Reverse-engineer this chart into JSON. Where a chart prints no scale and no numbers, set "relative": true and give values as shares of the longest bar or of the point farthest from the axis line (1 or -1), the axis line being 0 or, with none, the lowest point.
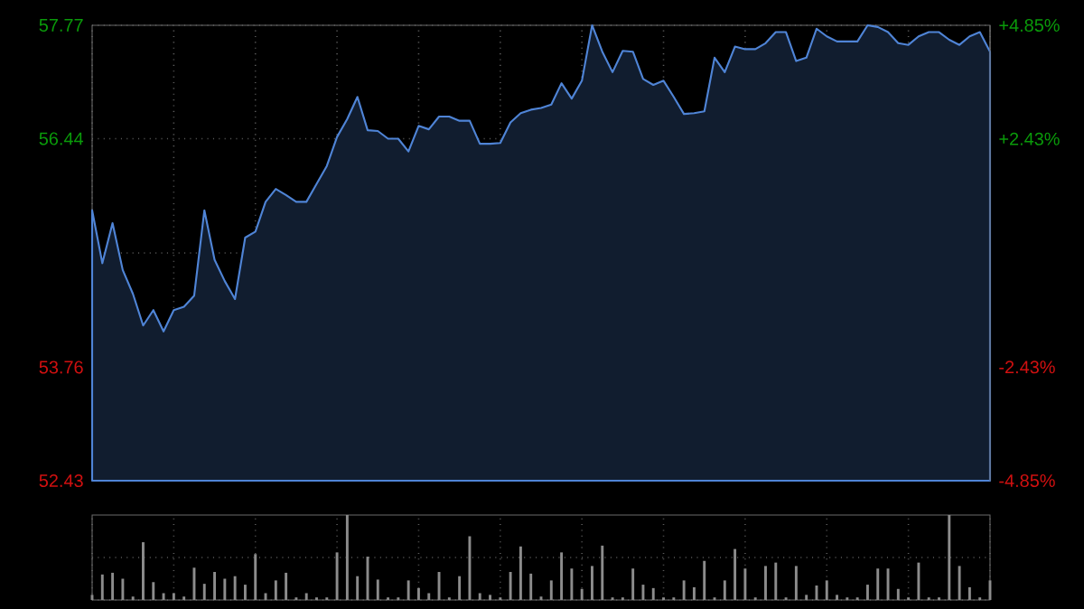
{
  "chart_data": [
    {
      "type": "area",
      "categories": [
        null,
        null,
        null,
        null,
        null,
        null,
        null,
        null,
        null,
        null,
        null,
        null,
        null,
        null,
        null,
        null,
        null,
        null,
        null,
        null,
        null,
        null,
        null,
        null,
        null,
        null,
        null,
        null,
        null,
        null,
        null,
        null,
        null,
        null,
        null,
        null,
        null,
        null,
        null,
        null,
        null,
        null,
        null,
        null,
        null,
        null,
        null,
        null,
        null,
        null,
        null,
        null,
        null,
        null,
        null,
        null,
        null,
        null,
        null,
        null,
        null,
        null,
        null,
        null,
        null,
        null,
        null,
        null,
        null,
        null,
        null,
        null,
        null,
        null,
        null,
        null,
        null,
        null,
        null,
        null,
        null,
        null,
        null,
        null,
        null,
        null,
        null,
        null,
        null
      ],
      "series": [
        {
          "color": "#4f84d6",
          "values": [
            55.6,
            54.98,
            55.45,
            54.9,
            54.62,
            54.25,
            54.43,
            54.18,
            54.43,
            54.47,
            54.6,
            55.6,
            55.02,
            54.77,
            54.56,
            55.28,
            55.35,
            55.7,
            55.85,
            55.78,
            55.7,
            55.7,
            55.91,
            56.12,
            56.46,
            56.67,
            56.93,
            56.54,
            56.53,
            56.44,
            56.44,
            56.29,
            56.59,
            56.55,
            56.7,
            56.7,
            56.65,
            56.65,
            56.38,
            56.38,
            56.39,
            56.63,
            56.74,
            56.78,
            56.8,
            56.84,
            57.09,
            56.91,
            57.12,
            57.77,
            57.46,
            57.22,
            57.47,
            57.46,
            57.14,
            57.07,
            57.12,
            56.93,
            56.73,
            56.74,
            56.76,
            57.39,
            57.22,
            57.52,
            57.49,
            57.49,
            57.56,
            57.69,
            57.69,
            57.35,
            57.39,
            57.73,
            57.64,
            57.58,
            57.58,
            57.58,
            57.77,
            57.75,
            57.69,
            57.56,
            57.54,
            57.64,
            57.69,
            57.69,
            57.6,
            57.54,
            57.64,
            57.69,
            57.46
          ]
        }
      ],
      "ylim": [
        52.43,
        57.77
      ],
      "yticks": [
        52.43,
        53.76,
        {
          "value": 55.1,
          "label": null
        },
        56.44,
        57.77
      ],
      "y2lim": [
        -4.85,
        4.85
      ],
      "y2ticks": [
        {
          "value": -4.85,
          "label": "-4.85%"
        },
        {
          "value": -2.43,
          "label": "-2.43%"
        },
        {
          "value": 2.43,
          "label": "+2.43%"
        },
        {
          "value": 4.85,
          "label": "+4.85%"
        }
      ],
      "grid": true,
      "tick_labels": "y"
    },
    {
      "type": "bar",
      "relative": true,
      "color": "#8c8c8c",
      "grid": true,
      "tick_labels": false,
      "categories": [
        null,
        null,
        null,
        null,
        null,
        null,
        null,
        null,
        null,
        null,
        null,
        null,
        null,
        null,
        null,
        null,
        null,
        null,
        null,
        null,
        null,
        null,
        null,
        null,
        null,
        null,
        null,
        null,
        null,
        null,
        null,
        null,
        null,
        null,
        null,
        null,
        null,
        null,
        null,
        null,
        null,
        null,
        null,
        null,
        null,
        null,
        null,
        null,
        null,
        null,
        null,
        null,
        null,
        null,
        null,
        null,
        null,
        null,
        null,
        null,
        null,
        null,
        null,
        null,
        null,
        null,
        null,
        null,
        null,
        null,
        null,
        null,
        null,
        null,
        null,
        null,
        null,
        null,
        null,
        null,
        null,
        null,
        null,
        null,
        null,
        null,
        null,
        null,
        null
      ],
      "values": [
        0.06,
        0.3,
        0.32,
        0.25,
        0.04,
        0.68,
        0.21,
        0.08,
        0.08,
        0.04,
        0.38,
        0.19,
        0.33,
        0.25,
        0.28,
        0.18,
        0.54,
        0.08,
        0.23,
        0.32,
        0.03,
        0.08,
        0.03,
        0.03,
        0.56,
        1.0,
        0.28,
        0.51,
        0.24,
        0.03,
        0.03,
        0.23,
        0.14,
        0.08,
        0.33,
        0.03,
        0.28,
        0.75,
        0.08,
        0.06,
        0.03,
        0.33,
        0.63,
        0.31,
        0.04,
        0.23,
        0.56,
        0.37,
        0.13,
        0.4,
        0.64,
        0.03,
        0.03,
        0.37,
        0.18,
        0.14,
        0.03,
        0.03,
        0.23,
        0.15,
        0.46,
        0.03,
        0.23,
        0.6,
        0.37,
        0.03,
        0.4,
        0.44,
        0.03,
        0.4,
        0.06,
        0.17,
        0.23,
        0.06,
        0.03,
        0.03,
        0.18,
        0.37,
        0.37,
        0.13,
        0.03,
        0.44,
        0.03,
        0.03,
        1.0,
        0.4,
        0.15,
        0.03,
        0.23
      ]
    }
  ]
}
